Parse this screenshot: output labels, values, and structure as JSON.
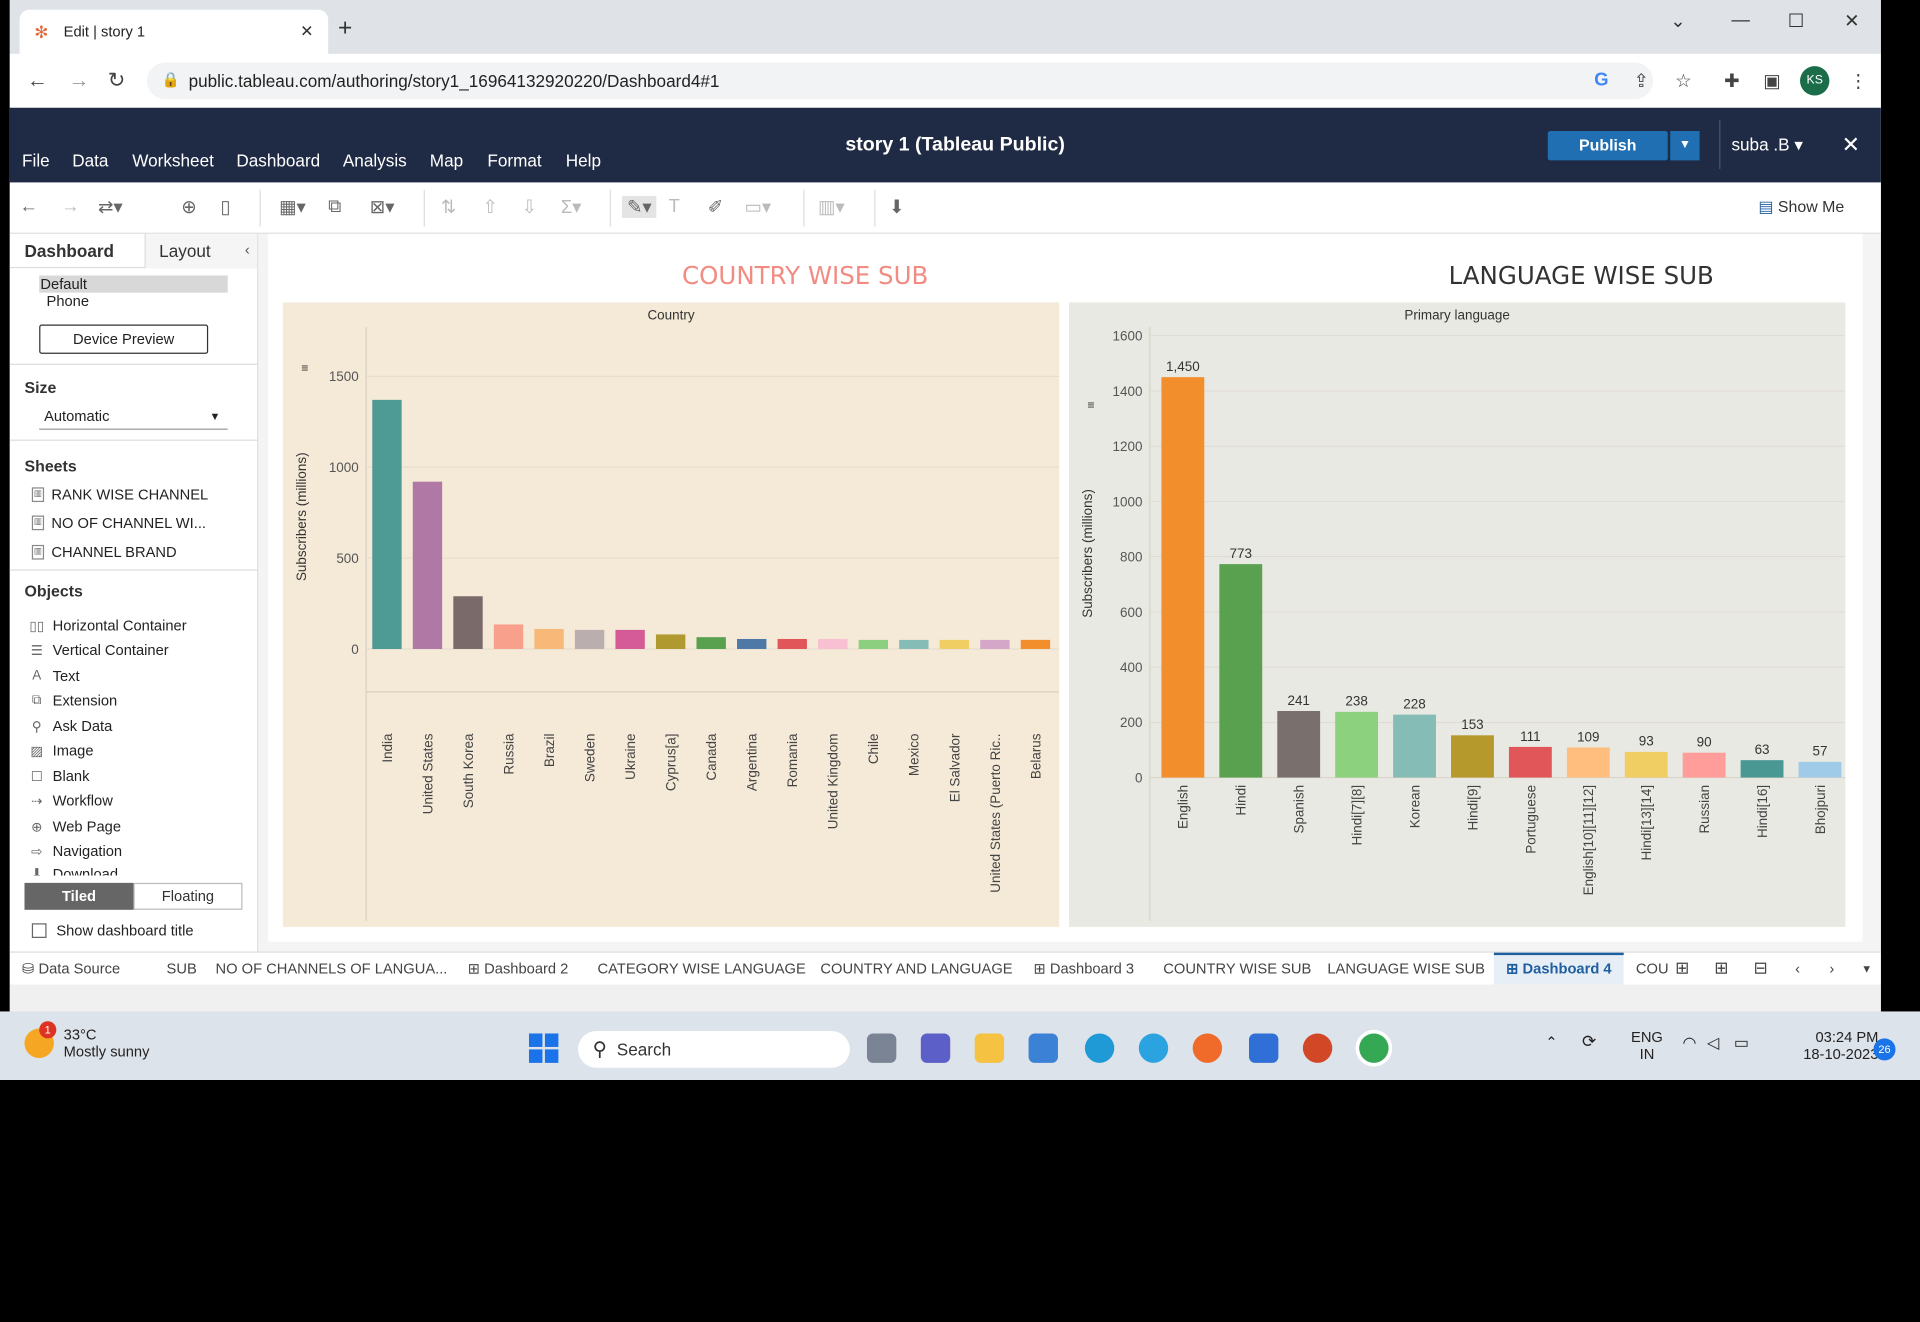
{
  "browser": {
    "tab_title": "Edit | story 1",
    "url": "public.tableau.com/authoring/story1_16964132920220/Dashboard4#1",
    "profile": "KS"
  },
  "app": {
    "title": "story 1 (Tableau Public)",
    "menu": [
      "File",
      "Data",
      "Worksheet",
      "Dashboard",
      "Analysis",
      "Map",
      "Format",
      "Help"
    ],
    "publish": "Publish",
    "user": "suba .B",
    "show_me": "Show Me"
  },
  "sidebar": {
    "tab_dashboard": "Dashboard",
    "tab_layout": "Layout",
    "device_default": "Default",
    "device_phone": "Phone",
    "device_preview": "Device Preview",
    "size_label": "Size",
    "size_value": "Automatic",
    "sheets_label": "Sheets",
    "sheets": [
      "RANK WISE CHANNEL",
      "NO OF CHANNEL WI...",
      "CHANNEL BRAND"
    ],
    "objects_label": "Objects",
    "objects": [
      "Horizontal Container",
      "Vertical Container",
      "Text",
      "Extension",
      "Ask Data",
      "Image",
      "Blank",
      "Workflow",
      "Web Page",
      "Navigation",
      "Download"
    ],
    "tiled": "Tiled",
    "floating": "Floating",
    "show_title": "Show dashboard title"
  },
  "bottom_tabs": [
    "Data Source",
    "SUB",
    "NO OF CHANNELS OF LANGUA...",
    "Dashboard 2",
    "CATEGORY WISE LANGUAGE",
    "COUNTRY AND LANGUAGE",
    "Dashboard 3",
    "COUNTRY WISE SUB",
    "LANGUAGE WISE SUB",
    "Dashboard 4",
    "COU"
  ],
  "taskbar": {
    "temp": "33°C",
    "weather": "Mostly sunny",
    "weather_badge": "1",
    "search": "Search",
    "lang1": "ENG",
    "lang2": "IN",
    "time": "03:24 PM",
    "date": "18-10-2023",
    "notif": "26"
  },
  "colors": {
    "titlebar": "#1f2a44",
    "publish": "#1f6fb2",
    "country_title": "#f28b82",
    "chart1_bg": "#f5e9d7",
    "chart2_bg": "#e9e9e3"
  },
  "chart_data": [
    {
      "type": "bar",
      "title": "COUNTRY WISE SUB",
      "header": "Country",
      "ylabel": "Subscribers (millions)",
      "ylim": [
        0,
        1600
      ],
      "yticks": [
        0,
        500,
        1000,
        1500
      ],
      "categories": [
        "India",
        "United States",
        "South Korea",
        "Russia",
        "Brazil",
        "Sweden",
        "Ukraine",
        "Cyprus[a]",
        "Canada",
        "Argentina",
        "Romania",
        "United Kingdom",
        "Chile",
        "Mexico",
        "El Salvador",
        "United States (Puerto Ric..",
        " Belarus"
      ],
      "values": [
        1370,
        920,
        290,
        135,
        110,
        105,
        105,
        80,
        65,
        55,
        55,
        55,
        50,
        50,
        50,
        50,
        50
      ],
      "colors": [
        "#4e9a95",
        "#b079a5",
        "#7a6a6a",
        "#f9a08c",
        "#f7b878",
        "#bbaeae",
        "#d55a98",
        "#b09a30",
        "#59a14f",
        "#4e79a7",
        "#e15759",
        "#f9bfd2",
        "#8ccf7e",
        "#86bcb6",
        "#f1ce63",
        "#d4a6c8",
        "#f28e2b"
      ]
    },
    {
      "type": "bar",
      "title": "LANGUAGE WISE SUB",
      "header": "Primary language",
      "ylabel": "Subscribers (millions)",
      "ylim": [
        0,
        1600
      ],
      "yticks": [
        0,
        200,
        400,
        600,
        800,
        1000,
        1200,
        1400,
        1600
      ],
      "categories": [
        "English",
        "Hindi",
        "Spanish",
        "Hindi[7][8]",
        "Korean",
        "Hindi[9]",
        "Portuguese",
        "English[10][11][12]",
        "Hindi[13][14]",
        "Russian",
        "Hindi[16]",
        "Bhojpuri"
      ],
      "values": [
        1450,
        773,
        241,
        238,
        228,
        153,
        111,
        109,
        93,
        90,
        63,
        57
      ],
      "labels": [
        "1,450",
        "773",
        "241",
        "238",
        "228",
        "153",
        "111",
        "109",
        "93",
        "90",
        "63",
        "57"
      ],
      "colors": [
        "#f28e2b",
        "#59a14f",
        "#79706e",
        "#8cd17d",
        "#86bcb6",
        "#b6992d",
        "#e15759",
        "#ffbe7d",
        "#f1ce63",
        "#ff9d9a",
        "#499894",
        "#a0cbe8"
      ]
    }
  ]
}
